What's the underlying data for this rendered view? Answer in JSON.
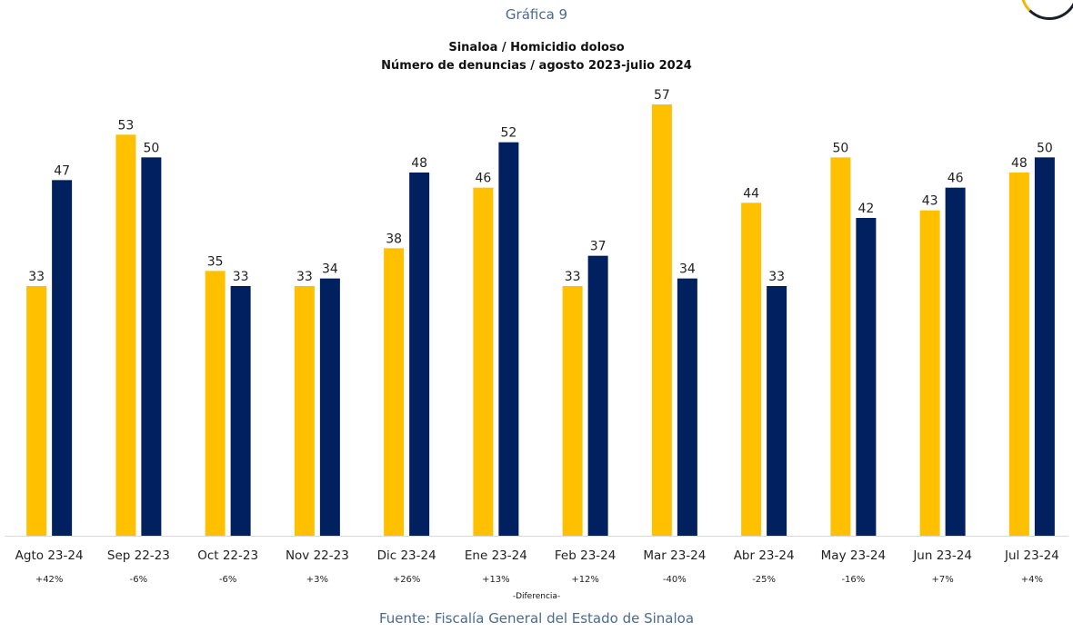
{
  "caption": "Gráfica 9",
  "title_line1": "Sinaloa / Homicidio doloso",
  "title_line2": "Número de denuncias  / agosto 2023-julio 2024",
  "chart_data": {
    "type": "bar",
    "categories": [
      "Agto 23-24",
      "Sep 22-23",
      "Oct 22-23",
      "Nov 22-23",
      "Dic 23-24",
      "Ene 23-24",
      "Feb 23-24",
      "Mar 23-24",
      "Abr 23-24",
      "May 23-24",
      "Jun 23-24",
      "Jul 23-24"
    ],
    "series": [
      {
        "values": [
          33,
          53,
          35,
          33,
          38,
          46,
          33,
          57,
          44,
          50,
          43,
          48
        ],
        "color": "#FFC000"
      },
      {
        "values": [
          47,
          50,
          33,
          34,
          48,
          52,
          37,
          34,
          33,
          42,
          46,
          50
        ],
        "color": "#002060"
      }
    ],
    "differences": [
      "+42%",
      "-6%",
      "-6%",
      "+3%",
      "+26%",
      "+13%",
      "+12%",
      "-40%",
      "-25%",
      "-16%",
      "+7%",
      "+4%"
    ],
    "ylim": [
      0,
      57
    ],
    "grid": false,
    "legend": "none"
  },
  "difference_label": "-Diferencia-",
  "source": "Fuente: Fiscalía General del Estado de Sinaloa"
}
